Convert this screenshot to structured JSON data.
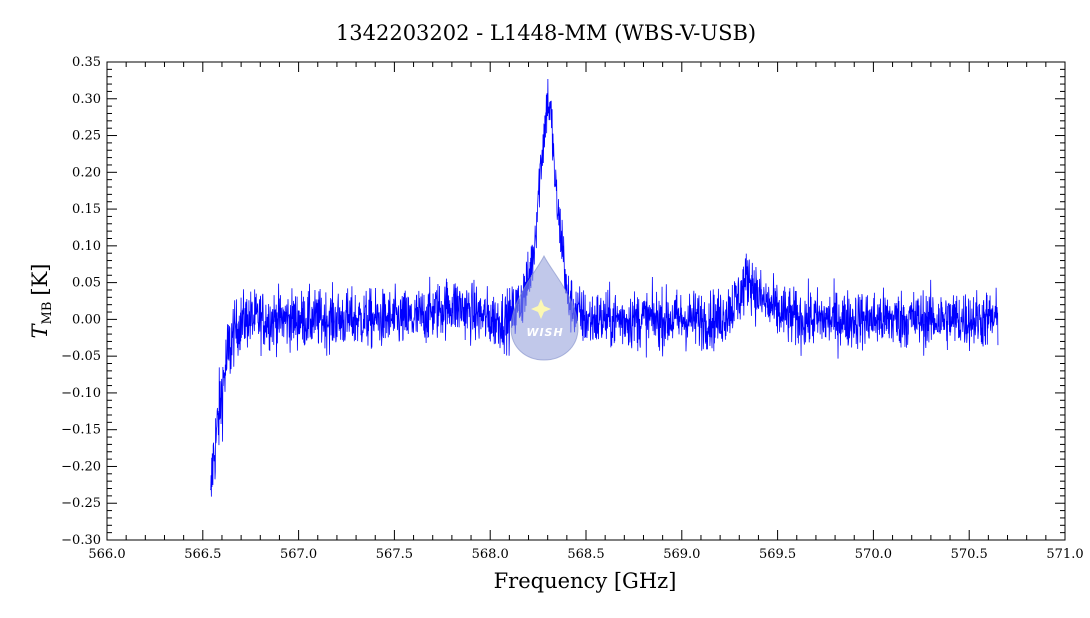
{
  "chart_data": {
    "type": "line",
    "title": "1342203202 - L1448-MM (WBS-V-USB)",
    "xlabel": "Frequency [GHz]",
    "ylabel_main": "T",
    "ylabel_sub": "MB",
    "ylabel_unit": "[K]",
    "xlim": [
      566.0,
      571.0
    ],
    "ylim": [
      -0.3,
      0.35
    ],
    "xticks": [
      "566.0",
      "566.5",
      "567.0",
      "567.5",
      "568.0",
      "568.5",
      "569.0",
      "569.5",
      "570.0",
      "570.5",
      "571.0"
    ],
    "yticks": [
      "−0.30",
      "−0.25",
      "−0.20",
      "−0.15",
      "−0.10",
      "−0.05",
      "0.00",
      "0.05",
      "0.10",
      "0.15",
      "0.20",
      "0.25",
      "0.30",
      "0.35"
    ],
    "series": [
      {
        "color": "#0000ff",
        "x": [
          566.54,
          566.55,
          566.57,
          566.59,
          566.61,
          566.63,
          566.65,
          566.68,
          566.72,
          566.8,
          566.9,
          567.0,
          567.1,
          567.2,
          567.3,
          567.4,
          567.5,
          567.6,
          567.7,
          567.8,
          567.9,
          568.0,
          568.1,
          568.15,
          568.2,
          568.23,
          568.26,
          568.28,
          568.3,
          568.32,
          568.34,
          568.36,
          568.38,
          568.4,
          568.45,
          568.5,
          568.6,
          568.7,
          568.8,
          568.9,
          569.0,
          569.1,
          569.2,
          569.3,
          569.35,
          569.4,
          569.5,
          569.6,
          569.7,
          569.8,
          569.9,
          570.0,
          570.1,
          570.2,
          570.3,
          570.4,
          570.5,
          570.6,
          570.65
        ],
        "y": [
          -0.26,
          -0.2,
          -0.16,
          -0.12,
          -0.08,
          -0.05,
          -0.03,
          -0.01,
          0.0,
          0.0,
          0.0,
          0.0,
          0.0,
          0.0,
          0.0,
          0.0,
          0.0,
          0.0,
          0.01,
          0.02,
          0.01,
          0.0,
          0.0,
          0.02,
          0.05,
          0.1,
          0.2,
          0.25,
          0.3,
          0.27,
          0.18,
          0.13,
          0.1,
          0.03,
          0.01,
          0.0,
          0.0,
          0.0,
          0.0,
          0.0,
          0.0,
          0.0,
          0.0,
          0.03,
          0.06,
          0.03,
          0.01,
          0.0,
          0.0,
          0.0,
          0.0,
          0.0,
          0.0,
          0.0,
          0.0,
          0.0,
          0.0,
          0.0,
          0.0
        ],
        "noise_rms": 0.02
      }
    ],
    "grid": false,
    "legend": "none"
  },
  "logo": {
    "text": "WISH",
    "icon": "star-drop-logo"
  }
}
